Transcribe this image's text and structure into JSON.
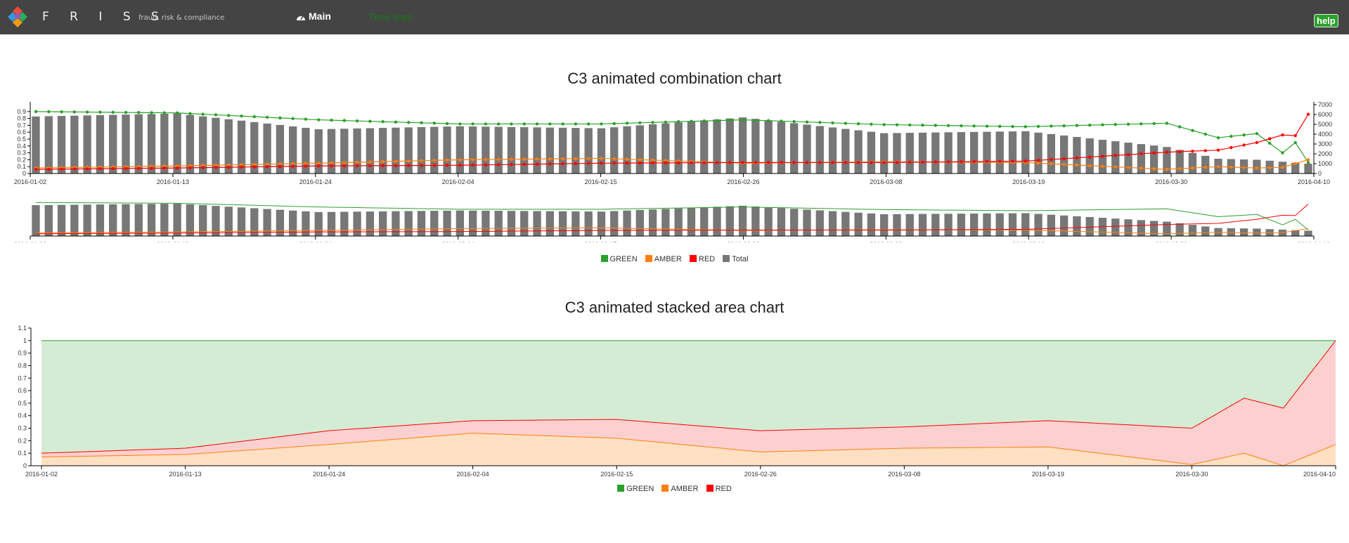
{
  "header": {
    "brand": "F R I S S",
    "tagline": "fraud, risk & compliance",
    "nav_main": "Main",
    "nav_timelines": "Time lines",
    "help": "help"
  },
  "colors": {
    "header_bg": "#444444",
    "green": "#2ca02c",
    "amber": "#ff7f0e",
    "red": "#ff0000",
    "total": "#777777",
    "timelines_link": "#1a7a1a",
    "help_button": "#2aa12a"
  },
  "icons": {
    "logo": "friss-diamond-logo",
    "nav_main": "dashboard-gauge-icon"
  },
  "combination": {
    "title": "C3 animated combination chart",
    "legend": [
      {
        "name": "GREEN",
        "color": "#2ca02c"
      },
      {
        "name": "AMBER",
        "color": "#ff7f0e"
      },
      {
        "name": "RED",
        "color": "#ff0000"
      },
      {
        "name": "Total",
        "color": "#777777"
      }
    ],
    "y_ticks": [
      "0",
      "0.1",
      "0.2",
      "0.3",
      "0.4",
      "0.5",
      "0.6",
      "0.7",
      "0.8",
      "0.9"
    ],
    "y2_ticks": [
      "0",
      "1000",
      "2000",
      "3000",
      "4000",
      "5000",
      "6000",
      "7000"
    ],
    "x_ticks": [
      "2016-01-02",
      "2016-01-13",
      "2016-01-24",
      "2016-02-04",
      "2016-02-15",
      "2016-02-26",
      "2016-03-08",
      "2016-03-19",
      "2016-03-30",
      "2016-04-10"
    ]
  },
  "area": {
    "title": "C3 animated stacked area chart",
    "legend": [
      {
        "name": "GREEN",
        "color": "#2ca02c"
      },
      {
        "name": "AMBER",
        "color": "#ff7f0e"
      },
      {
        "name": "RED",
        "color": "#ff0000"
      }
    ],
    "y_ticks": [
      "0",
      "0.1",
      "0.2",
      "0.3",
      "0.4",
      "0.5",
      "0.6",
      "0.7",
      "0.8",
      "0.9",
      "1",
      "1.1"
    ],
    "x_ticks": [
      "2016-01-02",
      "2016-01-13",
      "2016-01-24",
      "2016-02-04",
      "2016-02-15",
      "2016-02-26",
      "2016-03-08",
      "2016-03-19",
      "2016-03-30",
      "2016-04-10"
    ]
  },
  "chart_data": [
    {
      "type": "bar+line",
      "title": "C3 animated combination chart",
      "x_start": "2016-01-02",
      "x_end": "2016-04-10",
      "y_axis": {
        "range": [
          0,
          1
        ],
        "ticks": [
          0,
          0.1,
          0.2,
          0.3,
          0.4,
          0.5,
          0.6,
          0.7,
          0.8,
          0.9
        ]
      },
      "y2_axis": {
        "range": [
          0,
          7000
        ],
        "ticks": [
          0,
          1000,
          2000,
          3000,
          4000,
          5000,
          6000,
          7000
        ]
      },
      "legend_position": "bottom",
      "series": [
        {
          "name": "GREEN",
          "axis": "y",
          "type": "line",
          "key_points": [
            [
              "2016-01-02",
              0.9
            ],
            [
              "2016-01-13",
              0.88
            ],
            [
              "2016-01-24",
              0.78
            ],
            [
              "2016-02-04",
              0.72
            ],
            [
              "2016-02-15",
              0.72
            ],
            [
              "2016-02-26",
              0.78
            ],
            [
              "2016-03-08",
              0.71
            ],
            [
              "2016-03-19",
              0.68
            ],
            [
              "2016-03-30",
              0.73
            ],
            [
              "2016-04-03",
              0.52
            ],
            [
              "2016-04-06",
              0.58
            ],
            [
              "2016-04-08",
              0.3
            ],
            [
              "2016-04-09",
              0.45
            ],
            [
              "2016-04-10",
              0.16
            ]
          ]
        },
        {
          "name": "AMBER",
          "axis": "y",
          "type": "line",
          "key_points": [
            [
              "2016-01-02",
              0.08
            ],
            [
              "2016-01-13",
              0.11
            ],
            [
              "2016-01-24",
              0.15
            ],
            [
              "2016-02-04",
              0.2
            ],
            [
              "2016-02-15",
              0.22
            ],
            [
              "2016-02-26",
              0.15
            ],
            [
              "2016-03-08",
              0.17
            ],
            [
              "2016-03-19",
              0.16
            ],
            [
              "2016-03-30",
              0.06
            ],
            [
              "2016-04-03",
              0.1
            ],
            [
              "2016-04-06",
              0.08
            ],
            [
              "2016-04-08",
              0.09
            ],
            [
              "2016-04-10",
              0.2
            ]
          ]
        },
        {
          "name": "RED",
          "axis": "y",
          "type": "line",
          "key_points": [
            [
              "2016-01-02",
              0.06
            ],
            [
              "2016-01-13",
              0.08
            ],
            [
              "2016-01-24",
              0.11
            ],
            [
              "2016-02-04",
              0.12
            ],
            [
              "2016-02-15",
              0.15
            ],
            [
              "2016-02-26",
              0.16
            ],
            [
              "2016-03-08",
              0.16
            ],
            [
              "2016-03-19",
              0.18
            ],
            [
              "2016-03-30",
              0.31
            ],
            [
              "2016-04-03",
              0.34
            ],
            [
              "2016-04-06",
              0.45
            ],
            [
              "2016-04-08",
              0.56
            ],
            [
              "2016-04-09",
              0.55
            ],
            [
              "2016-04-10",
              0.86
            ]
          ]
        },
        {
          "name": "Total",
          "axis": "y2",
          "type": "bar",
          "key_points": [
            [
              "2016-01-02",
              5800
            ],
            [
              "2016-01-13",
              6100
            ],
            [
              "2016-01-24",
              4500
            ],
            [
              "2016-02-04",
              4800
            ],
            [
              "2016-02-15",
              4600
            ],
            [
              "2016-02-26",
              5700
            ],
            [
              "2016-03-08",
              4100
            ],
            [
              "2016-03-19",
              4300
            ],
            [
              "2016-03-30",
              2700
            ],
            [
              "2016-04-03",
              1500
            ],
            [
              "2016-04-06",
              1400
            ],
            [
              "2016-04-10",
              1000
            ]
          ]
        }
      ]
    },
    {
      "type": "area",
      "stacked": true,
      "title": "C3 animated stacked area chart",
      "x_start": "2016-01-02",
      "x_end": "2016-04-10",
      "y_axis": {
        "range": [
          0,
          1.1
        ],
        "ticks": [
          0,
          0.1,
          0.2,
          0.3,
          0.4,
          0.5,
          0.6,
          0.7,
          0.8,
          0.9,
          1,
          1.1
        ]
      },
      "legend_position": "bottom",
      "series": [
        {
          "name": "AMBER",
          "key_points": [
            [
              "2016-01-02",
              0.07
            ],
            [
              "2016-01-13",
              0.09
            ],
            [
              "2016-01-24",
              0.17
            ],
            [
              "2016-02-04",
              0.26
            ],
            [
              "2016-02-15",
              0.22
            ],
            [
              "2016-02-26",
              0.11
            ],
            [
              "2016-03-08",
              0.14
            ],
            [
              "2016-03-19",
              0.15
            ],
            [
              "2016-03-30",
              0.01
            ],
            [
              "2016-04-03",
              0.1
            ],
            [
              "2016-04-06",
              0.0
            ],
            [
              "2016-04-10",
              0.17
            ]
          ]
        },
        {
          "name": "RED",
          "key_points": [
            [
              "2016-01-02",
              0.03
            ],
            [
              "2016-01-13",
              0.05
            ],
            [
              "2016-01-24",
              0.11
            ],
            [
              "2016-02-04",
              0.1
            ],
            [
              "2016-02-15",
              0.15
            ],
            [
              "2016-02-26",
              0.17
            ],
            [
              "2016-03-08",
              0.17
            ],
            [
              "2016-03-19",
              0.21
            ],
            [
              "2016-03-30",
              0.29
            ],
            [
              "2016-04-03",
              0.44
            ],
            [
              "2016-04-06",
              0.46
            ],
            [
              "2016-04-10",
              0.83
            ]
          ]
        },
        {
          "name": "GREEN",
          "key_points": [
            [
              "2016-01-02",
              0.9
            ],
            [
              "2016-01-13",
              0.86
            ],
            [
              "2016-01-24",
              0.72
            ],
            [
              "2016-02-04",
              0.64
            ],
            [
              "2016-02-15",
              0.63
            ],
            [
              "2016-02-26",
              0.72
            ],
            [
              "2016-03-08",
              0.69
            ],
            [
              "2016-03-19",
              0.64
            ],
            [
              "2016-03-30",
              0.7
            ],
            [
              "2016-04-03",
              0.46
            ],
            [
              "2016-04-06",
              0.54
            ],
            [
              "2016-04-10",
              0.0
            ]
          ]
        }
      ]
    }
  ]
}
